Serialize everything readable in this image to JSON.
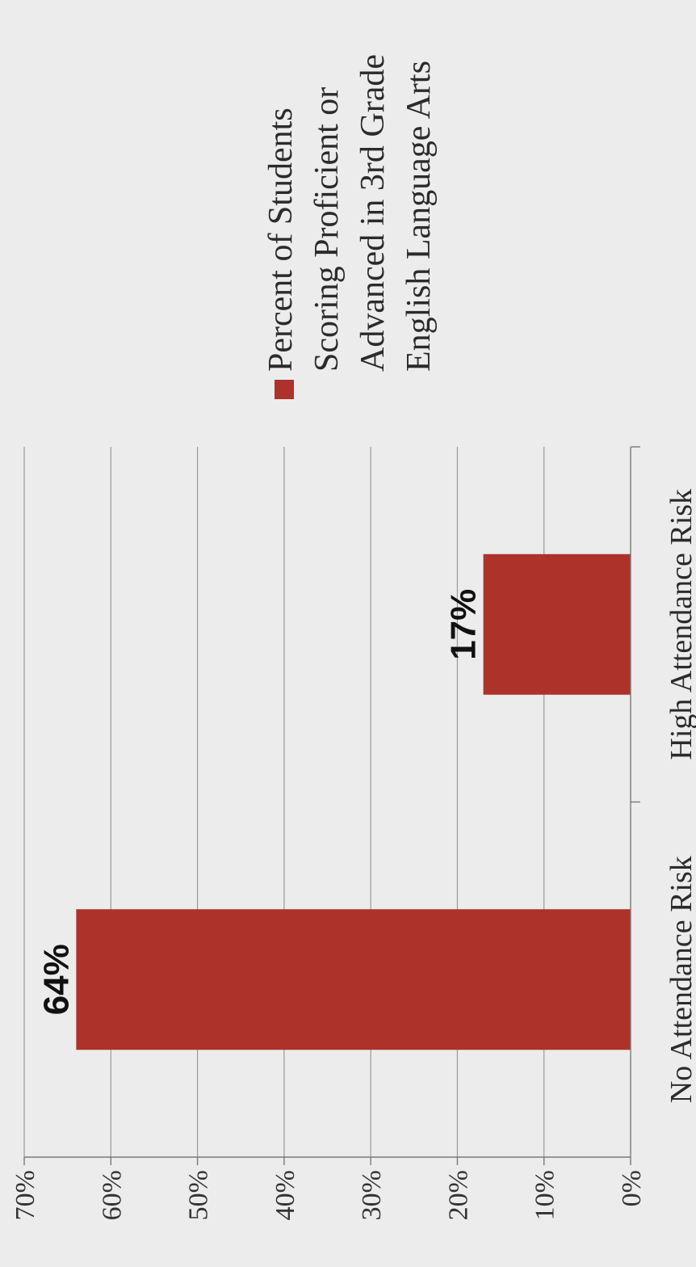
{
  "chart_data": {
    "type": "bar",
    "orientation": "rotated-90-ccw",
    "categories": [
      "No Attendance Risk",
      "High Attendance Risk"
    ],
    "series": [
      {
        "name": "Percent of Students Scoring Proficient or Advanced in 3rd Grade English Language Arts",
        "legend_lines": [
          "Percent of Students",
          "Scoring Proficient or",
          "Advanced in 3rd Grade",
          "English Language Arts"
        ],
        "values": [
          64,
          17
        ],
        "data_labels": [
          "64%",
          "17%"
        ],
        "color": "#ad3229"
      }
    ],
    "ylim": [
      0,
      70
    ],
    "yticks": [
      0,
      10,
      20,
      30,
      40,
      50,
      60,
      70
    ],
    "ytick_labels": [
      "0%",
      "10%",
      "20%",
      "30%",
      "40%",
      "50%",
      "60%",
      "70%"
    ],
    "grid": true,
    "legend_position": "right",
    "title": "",
    "xlabel": "",
    "ylabel": ""
  },
  "colors": {
    "background": "#ececec",
    "gridline": "#9a9a9a",
    "axis": "#7a7a7a",
    "bar": "#ad3229"
  }
}
